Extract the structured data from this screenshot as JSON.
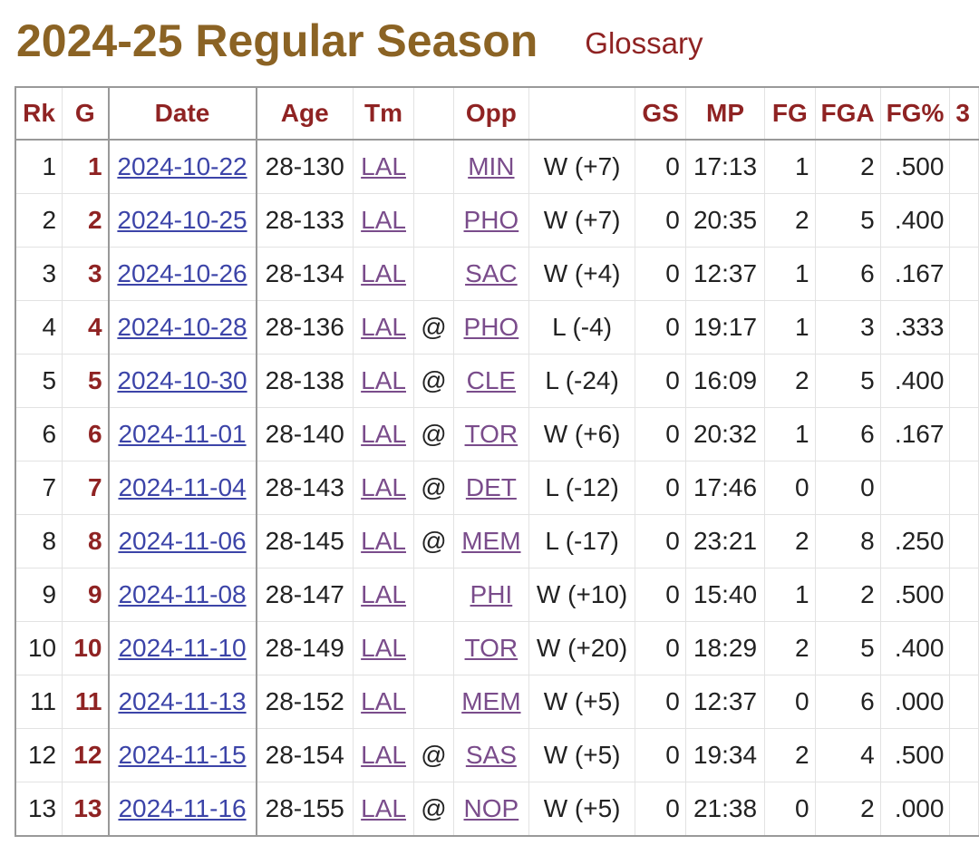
{
  "header": {
    "title": "2024-25 Regular Season",
    "glossary": "Glossary"
  },
  "columns": [
    "Rk",
    "G",
    "Date",
    "Age",
    "Tm",
    "",
    "Opp",
    "",
    "GS",
    "MP",
    "FG",
    "FGA",
    "FG%",
    "3"
  ],
  "rows": [
    {
      "rk": "1",
      "g": "1",
      "date": "2024-10-22",
      "age": "28-130",
      "tm": "LAL",
      "at": "",
      "opp": "MIN",
      "res": "W (+7)",
      "gs": "0",
      "mp": "17:13",
      "fg": "1",
      "fga": "2",
      "fgp": ".500"
    },
    {
      "rk": "2",
      "g": "2",
      "date": "2024-10-25",
      "age": "28-133",
      "tm": "LAL",
      "at": "",
      "opp": "PHO",
      "res": "W (+7)",
      "gs": "0",
      "mp": "20:35",
      "fg": "2",
      "fga": "5",
      "fgp": ".400"
    },
    {
      "rk": "3",
      "g": "3",
      "date": "2024-10-26",
      "age": "28-134",
      "tm": "LAL",
      "at": "",
      "opp": "SAC",
      "res": "W (+4)",
      "gs": "0",
      "mp": "12:37",
      "fg": "1",
      "fga": "6",
      "fgp": ".167"
    },
    {
      "rk": "4",
      "g": "4",
      "date": "2024-10-28",
      "age": "28-136",
      "tm": "LAL",
      "at": "@",
      "opp": "PHO",
      "res": "L (-4)",
      "gs": "0",
      "mp": "19:17",
      "fg": "1",
      "fga": "3",
      "fgp": ".333"
    },
    {
      "rk": "5",
      "g": "5",
      "date": "2024-10-30",
      "age": "28-138",
      "tm": "LAL",
      "at": "@",
      "opp": "CLE",
      "res": "L (-24)",
      "gs": "0",
      "mp": "16:09",
      "fg": "2",
      "fga": "5",
      "fgp": ".400"
    },
    {
      "rk": "6",
      "g": "6",
      "date": "2024-11-01",
      "age": "28-140",
      "tm": "LAL",
      "at": "@",
      "opp": "TOR",
      "res": "W (+6)",
      "gs": "0",
      "mp": "20:32",
      "fg": "1",
      "fga": "6",
      "fgp": ".167"
    },
    {
      "rk": "7",
      "g": "7",
      "date": "2024-11-04",
      "age": "28-143",
      "tm": "LAL",
      "at": "@",
      "opp": "DET",
      "res": "L (-12)",
      "gs": "0",
      "mp": "17:46",
      "fg": "0",
      "fga": "0",
      "fgp": ""
    },
    {
      "rk": "8",
      "g": "8",
      "date": "2024-11-06",
      "age": "28-145",
      "tm": "LAL",
      "at": "@",
      "opp": "MEM",
      "res": "L (-17)",
      "gs": "0",
      "mp": "23:21",
      "fg": "2",
      "fga": "8",
      "fgp": ".250"
    },
    {
      "rk": "9",
      "g": "9",
      "date": "2024-11-08",
      "age": "28-147",
      "tm": "LAL",
      "at": "",
      "opp": "PHI",
      "res": "W (+10)",
      "gs": "0",
      "mp": "15:40",
      "fg": "1",
      "fga": "2",
      "fgp": ".500"
    },
    {
      "rk": "10",
      "g": "10",
      "date": "2024-11-10",
      "age": "28-149",
      "tm": "LAL",
      "at": "",
      "opp": "TOR",
      "res": "W (+20)",
      "gs": "0",
      "mp": "18:29",
      "fg": "2",
      "fga": "5",
      "fgp": ".400"
    },
    {
      "rk": "11",
      "g": "11",
      "date": "2024-11-13",
      "age": "28-152",
      "tm": "LAL",
      "at": "",
      "opp": "MEM",
      "res": "W (+5)",
      "gs": "0",
      "mp": "12:37",
      "fg": "0",
      "fga": "6",
      "fgp": ".000"
    },
    {
      "rk": "12",
      "g": "12",
      "date": "2024-11-15",
      "age": "28-154",
      "tm": "LAL",
      "at": "@",
      "opp": "SAS",
      "res": "W (+5)",
      "gs": "0",
      "mp": "19:34",
      "fg": "2",
      "fga": "4",
      "fgp": ".500"
    },
    {
      "rk": "13",
      "g": "13",
      "date": "2024-11-16",
      "age": "28-155",
      "tm": "LAL",
      "at": "@",
      "opp": "NOP",
      "res": "W (+5)",
      "gs": "0",
      "mp": "21:38",
      "fg": "0",
      "fga": "2",
      "fgp": ".000"
    }
  ],
  "colors": {
    "title": "#8b6324",
    "header_text": "#8f2323",
    "date_link": "#3c44a8",
    "team_link": "#7a4c8b"
  }
}
